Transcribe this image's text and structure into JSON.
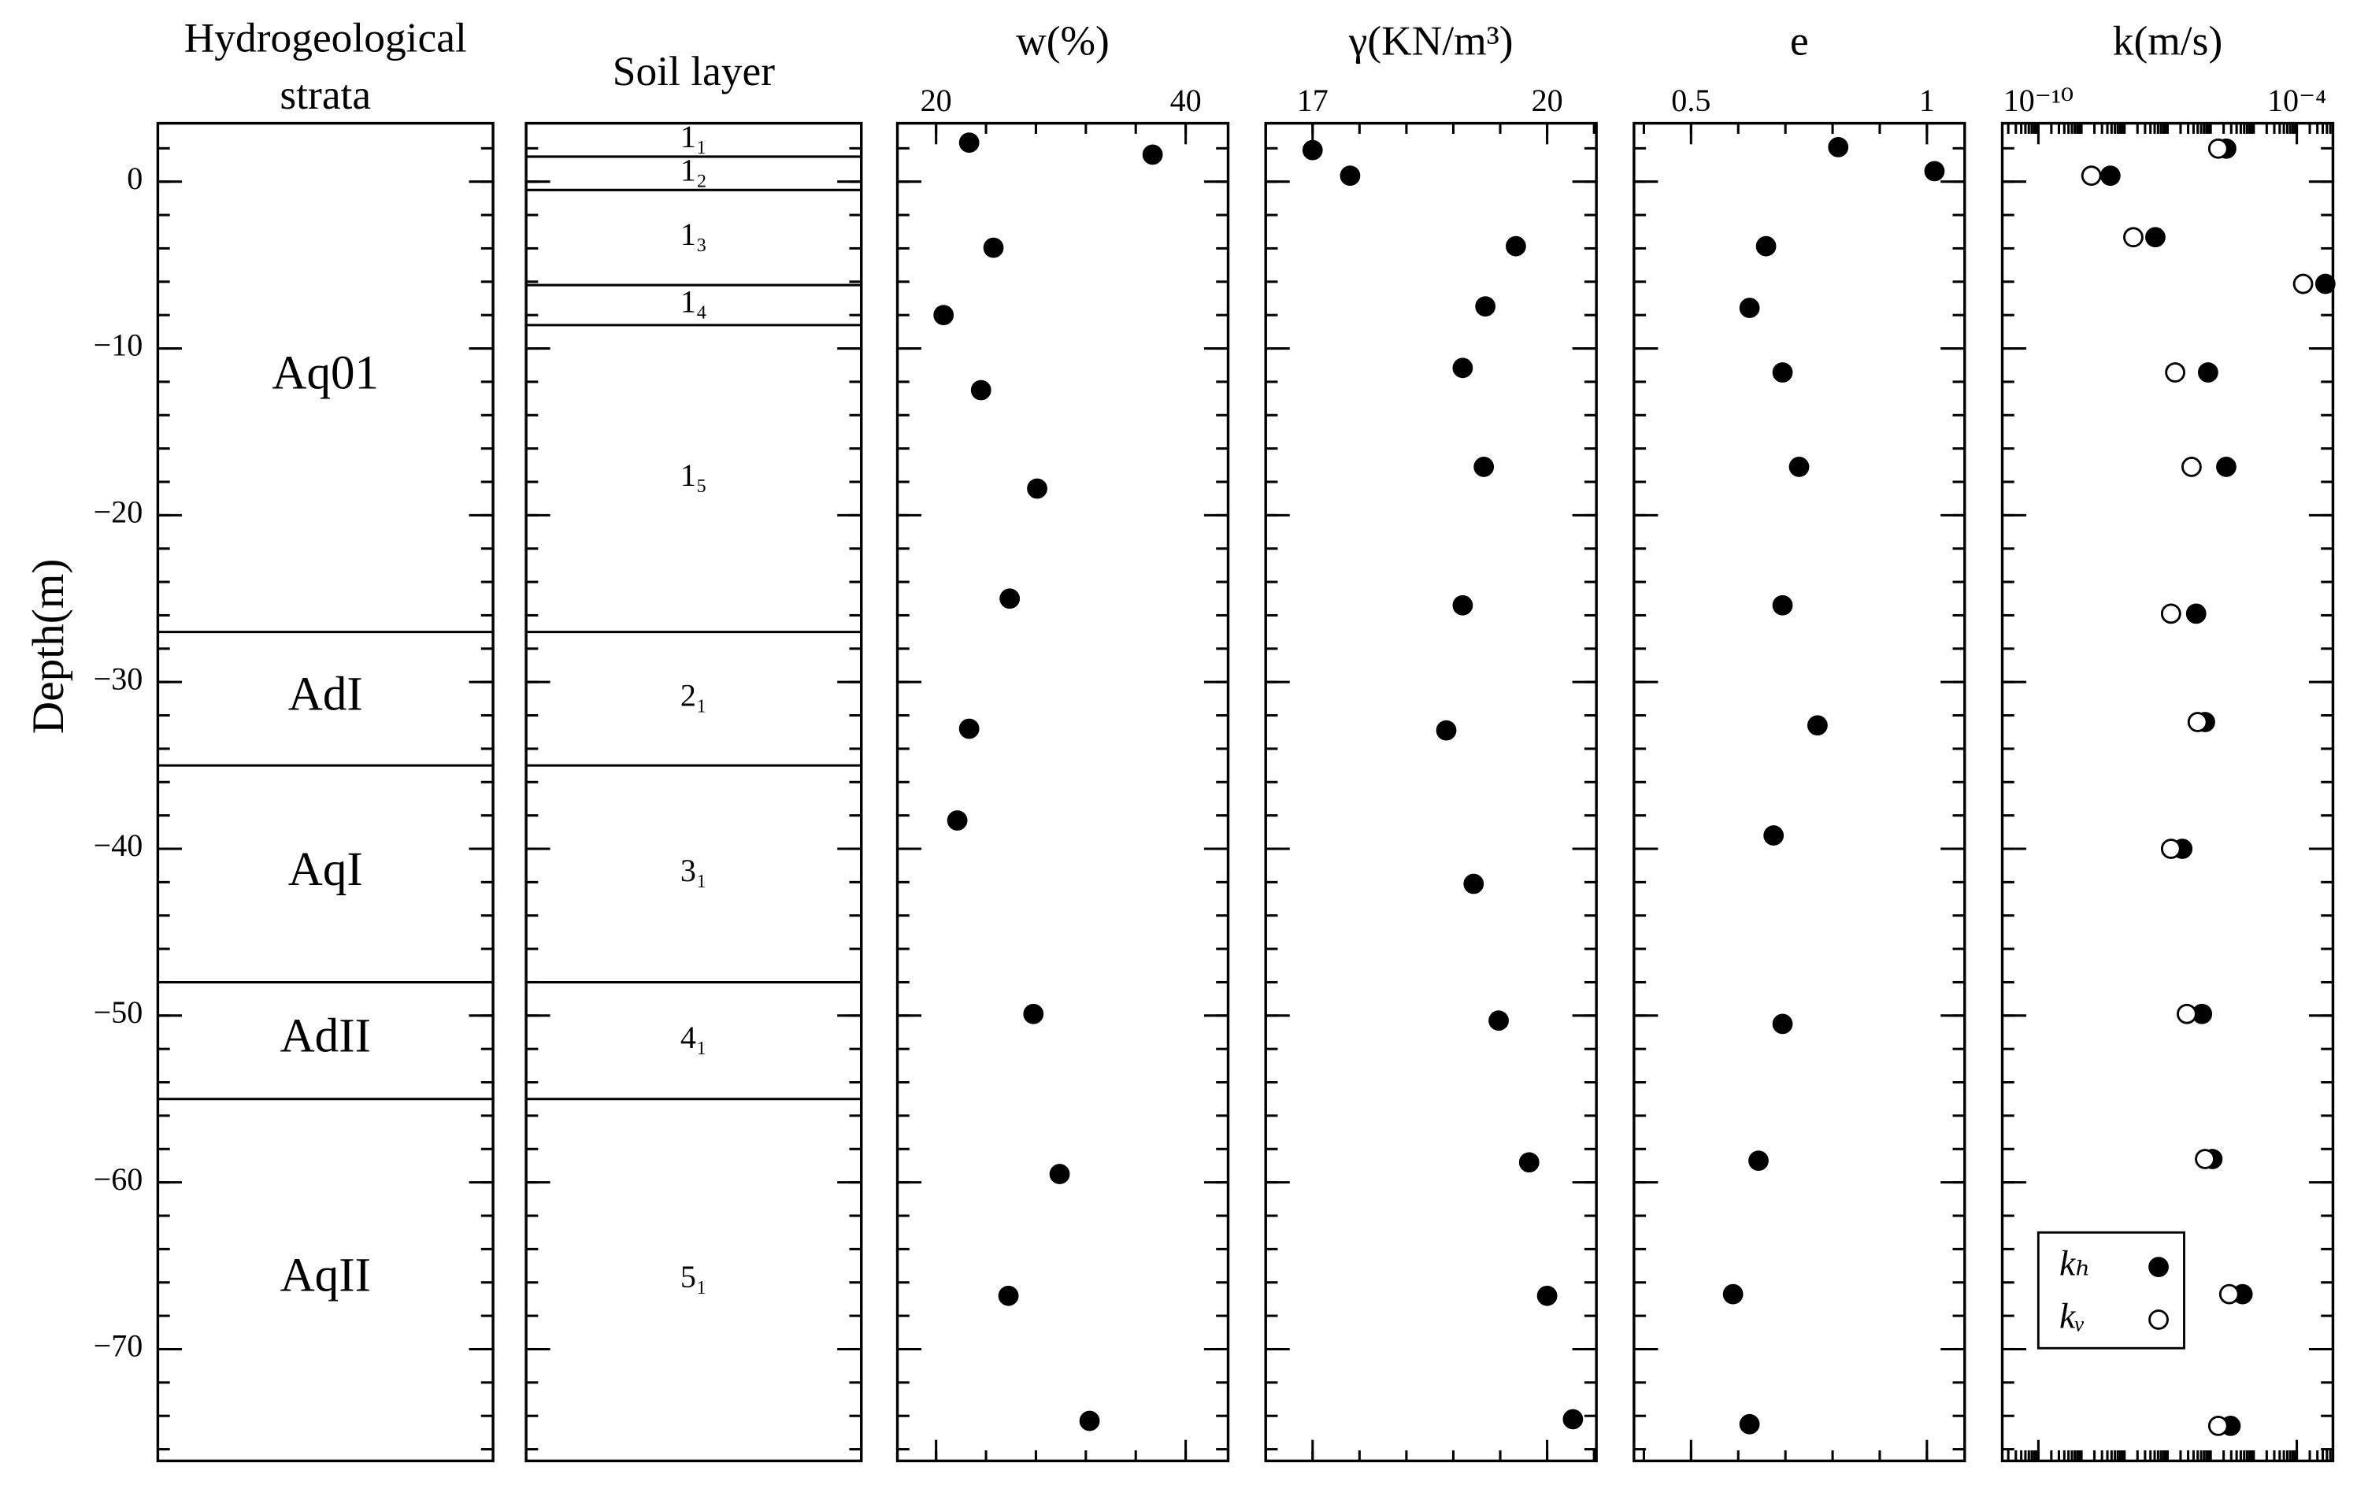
{
  "depth_axis": {
    "label": "Depth(m)",
    "ylim": [
      -76.7,
      3.5
    ],
    "yticks": [
      0,
      {
        "value": -10,
        "label": "−10"
      },
      {
        "value": -20,
        "label": "−20"
      },
      {
        "value": -30,
        "label": "−30"
      },
      {
        "value": -40,
        "label": "−40"
      },
      {
        "value": -50,
        "label": "−50"
      },
      {
        "value": -60,
        "label": "−60"
      },
      {
        "value": -70,
        "label": "−70"
      }
    ]
  },
  "chart_data": [
    {
      "type": "strata",
      "title": "Hydrogeological strata",
      "layers": [
        "Aq01",
        "AdI",
        "AqI",
        "AdII",
        "AqII"
      ],
      "boundaries": [
        -27,
        -35,
        -48,
        -55
      ]
    },
    {
      "type": "strata",
      "title": "Soil layer",
      "layers": [
        "1₁",
        "1₂",
        "1₃",
        "1₄",
        "1₅",
        "2₁",
        "3₁",
        "4₁",
        "5₁"
      ],
      "boundaries": [
        1.5,
        -0.5,
        -6.2,
        -8.6,
        -27,
        -35,
        -48,
        -55
      ]
    },
    {
      "type": "scatter",
      "title": "w(%)",
      "xlim": [
        16.9,
        43.4
      ],
      "xticks": [
        20,
        40
      ],
      "color": "#000000",
      "x": [
        22.65,
        37.35,
        24.6,
        20.6,
        23.6,
        28.1,
        25.9,
        22.65,
        21.7,
        27.8,
        29.9,
        25.8,
        32.3
      ],
      "y": [
        2.34,
        1.62,
        -3.96,
        -8.0,
        -12.5,
        -18.4,
        -25.0,
        -32.8,
        -38.3,
        -49.9,
        -59.5,
        -66.8,
        -74.3
      ]
    },
    {
      "type": "scatter",
      "title": "γ(KN/m³)",
      "xlim": [
        16.4,
        20.63
      ],
      "xticks": [
        17,
        20
      ],
      "color": "#000000",
      "x": [
        17.0,
        17.48,
        19.6,
        19.21,
        18.92,
        19.19,
        18.92,
        18.71,
        19.06,
        19.38,
        19.77,
        20.0,
        20.33
      ],
      "y": [
        1.89,
        0.36,
        -3.87,
        -7.48,
        -11.17,
        -17.1,
        -25.4,
        -32.9,
        -42.1,
        -50.3,
        -58.8,
        -66.8,
        -74.2
      ]
    },
    {
      "type": "scatter",
      "title": "e",
      "xlim": [
        0.379,
        1.08
      ],
      "xticks": [
        0.5,
        1
      ],
      "color": "#000000",
      "x": [
        0.812,
        1.016,
        0.659,
        0.624,
        0.694,
        0.729,
        0.694,
        0.768,
        0.675,
        0.694,
        0.643,
        0.589,
        0.624
      ],
      "y": [
        2.07,
        0.63,
        -3.87,
        -7.57,
        -11.44,
        -17.1,
        -25.4,
        -32.6,
        -39.2,
        -50.5,
        -58.7,
        -66.7,
        -74.5
      ]
    },
    {
      "type": "scatter",
      "title": "k(m/s)",
      "log_x": true,
      "xlim": [
        1.45e-11,
        0.00069
      ],
      "xticks": [
        {
          "value": 1e-10,
          "label": "10⁻¹⁰"
        },
        {
          "value": 0.0001,
          "label": "10⁻⁴"
        }
      ],
      "legend": "lower left",
      "series": [
        {
          "name": "kₕ",
          "color": "#000000",
          "filled": true,
          "x": [
            2.3e-06,
            4.7e-09,
            5.2e-08,
            0.00046,
            8.7e-07,
            2.3e-06,
            4.6e-07,
            7.4e-07,
            2.2e-07,
            6.3e-07,
            1.1e-06,
            5.5e-06,
            2.9e-06
          ],
          "y": [
            1.98,
            0.36,
            -3.33,
            -6.13,
            -11.44,
            -17.1,
            -25.9,
            -32.4,
            -40.0,
            -49.9,
            -58.6,
            -66.7,
            -74.6
          ]
        },
        {
          "name": "kᵥ",
          "color": "#000000",
          "filled": false,
          "x": [
            1.5e-06,
            1.7e-09,
            1.6e-08,
            0.00014,
            1.5e-07,
            3.6e-07,
            1.2e-07,
            5e-07,
            1.2e-07,
            2.8e-07,
            7.4e-07,
            2.7e-06,
            1.5e-06
          ],
          "y": [
            1.98,
            0.36,
            -3.33,
            -6.13,
            -11.44,
            -17.1,
            -25.9,
            -32.4,
            -40.0,
            -49.9,
            -58.6,
            -66.7,
            -74.6
          ]
        }
      ]
    }
  ]
}
